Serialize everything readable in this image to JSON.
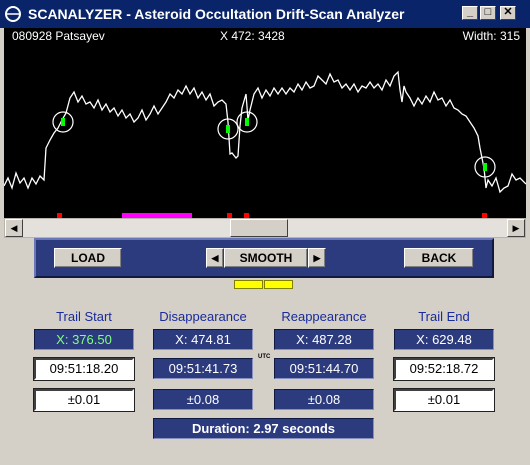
{
  "window": {
    "title": "SCANALYZER - Asteroid Occultation Drift-Scan Analyzer",
    "minimize": "_",
    "maximize": "□",
    "close": "✕"
  },
  "plot": {
    "header_left": "080928 Patsayev",
    "header_center": "X 472: 3428",
    "header_right": "Width: 315",
    "trace_color": "#ffffff",
    "marker_color": "#00ff00",
    "tick_color": "#ff0000",
    "highlight_color": "#ff00ff"
  },
  "scrollbar": {
    "left_arrow": "◀",
    "right_arrow": "▶"
  },
  "toolbar": {
    "load_label": "LOAD",
    "smooth_label": "SMOOTH",
    "back_label": "BACK",
    "prev_arrow": "◀",
    "next_arrow": "▶"
  },
  "panels": {
    "trail_start": {
      "label": "Trail Start",
      "x": "X:  376.50",
      "time": "09:51:18.20",
      "err": "±0.01"
    },
    "disappearance": {
      "label": "Disappearance",
      "x": "X:  474.81",
      "time": "09:51:41.73",
      "err": "±0.08"
    },
    "reappearance": {
      "label": "Reappearance",
      "x": "X:  487.28",
      "time": "09:51:44.70",
      "err": "±0.08"
    },
    "trail_end": {
      "label": "Trail End",
      "x": "X:  629.48",
      "time": "09:52:18.72",
      "err": "±0.01"
    },
    "utc_label": "UTC",
    "duration": "Duration:  2.97  seconds"
  }
}
